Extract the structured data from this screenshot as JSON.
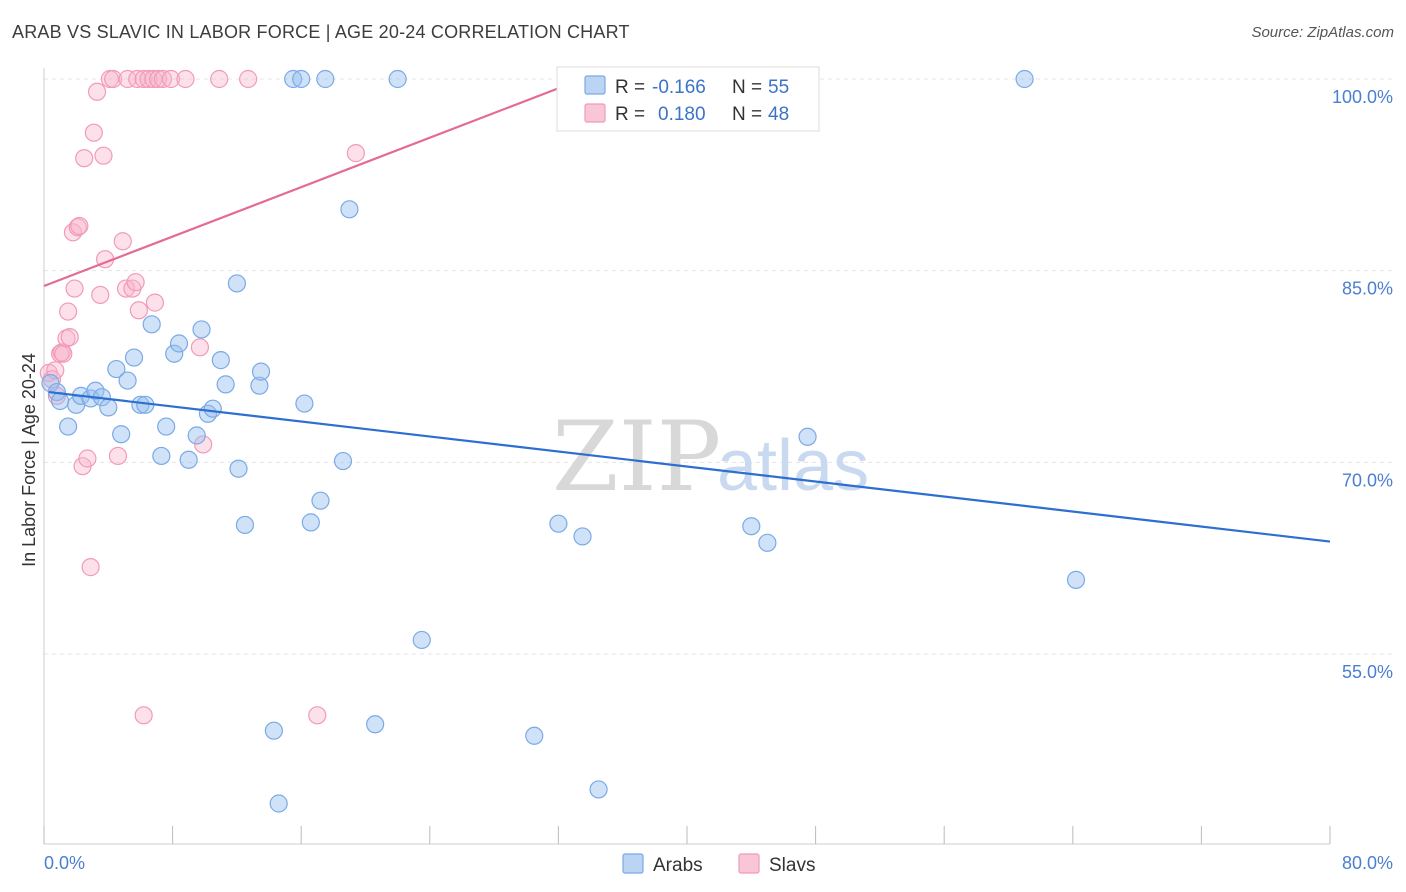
{
  "title": "ARAB VS SLAVIC IN LABOR FORCE | AGE 20-24 CORRELATION CHART",
  "source": "Source: ZipAtlas.com",
  "watermark": {
    "zip": "ZIP",
    "atlas": "atlas"
  },
  "colors": {
    "arabs": "#7aaae6",
    "slavs": "#f29ab8",
    "arabs_line": "#2d6fd0",
    "slavs_line": "#e46b94",
    "tick": "#4a7fd0"
  },
  "legend": {
    "r_label": "R =",
    "n_label": "N =",
    "arabs": {
      "r": "-0.166",
      "n": "55"
    },
    "slavs": {
      "r": "0.180",
      "n": "48"
    }
  },
  "chart_data": {
    "type": "scatter",
    "ylabel": "In Labor Force | Age 20-24",
    "xlim": [
      0,
      80
    ],
    "ylim": [
      42,
      102
    ],
    "x_tick_labels": [
      "0.0%",
      "80.0%"
    ],
    "x_ticks": [
      0,
      8,
      16,
      24,
      32,
      40,
      48,
      56,
      64,
      72,
      80
    ],
    "y_ticks": [
      {
        "value": 100,
        "label": "100.0%"
      },
      {
        "value": 85,
        "label": "85.0%"
      },
      {
        "value": 70,
        "label": "70.0%"
      },
      {
        "value": 55,
        "label": "55.0%"
      }
    ],
    "series": [
      {
        "name": "Arabs",
        "trend": [
          [
            0.3,
            75.5
          ],
          [
            80,
            63.8
          ]
        ],
        "points": [
          [
            0.4,
            76.2
          ],
          [
            0.8,
            75.5
          ],
          [
            1.0,
            74.8
          ],
          [
            1.5,
            72.8
          ],
          [
            2.0,
            74.5
          ],
          [
            2.3,
            75.2
          ],
          [
            2.9,
            75.0
          ],
          [
            3.2,
            75.6
          ],
          [
            3.6,
            75.1
          ],
          [
            4.0,
            74.3
          ],
          [
            4.5,
            77.3
          ],
          [
            4.8,
            72.2
          ],
          [
            5.2,
            76.4
          ],
          [
            5.6,
            78.2
          ],
          [
            6.0,
            74.5
          ],
          [
            6.3,
            74.5
          ],
          [
            6.7,
            80.8
          ],
          [
            7.3,
            70.5
          ],
          [
            7.6,
            72.8
          ],
          [
            8.1,
            78.5
          ],
          [
            8.4,
            79.3
          ],
          [
            9.0,
            70.2
          ],
          [
            9.5,
            72.1
          ],
          [
            9.8,
            80.4
          ],
          [
            10.2,
            73.8
          ],
          [
            10.5,
            74.2
          ],
          [
            11.0,
            78.0
          ],
          [
            11.3,
            76.1
          ],
          [
            12.0,
            84.0
          ],
          [
            12.1,
            69.5
          ],
          [
            12.5,
            65.1
          ],
          [
            13.4,
            76.0
          ],
          [
            13.5,
            77.1
          ],
          [
            14.3,
            49.0
          ],
          [
            14.6,
            43.3
          ],
          [
            15.5,
            100.0
          ],
          [
            16.0,
            100.0
          ],
          [
            16.2,
            74.6
          ],
          [
            16.6,
            65.3
          ],
          [
            17.2,
            67.0
          ],
          [
            17.5,
            100.0
          ],
          [
            18.6,
            70.1
          ],
          [
            19.0,
            89.8
          ],
          [
            20.6,
            49.5
          ],
          [
            22.0,
            100.0
          ],
          [
            23.5,
            56.1
          ],
          [
            30.5,
            48.6
          ],
          [
            32.0,
            65.2
          ],
          [
            33.5,
            64.2
          ],
          [
            34.5,
            44.4
          ],
          [
            44.0,
            65.0
          ],
          [
            45.0,
            63.7
          ],
          [
            47.5,
            72.0
          ],
          [
            61.0,
            100.0
          ],
          [
            64.2,
            60.8
          ]
        ]
      },
      {
        "name": "Slavs",
        "trend": [
          [
            0,
            83.8
          ],
          [
            33.5,
            100.0
          ]
        ],
        "points": [
          [
            0.3,
            77.0
          ],
          [
            0.5,
            76.5
          ],
          [
            0.7,
            77.2
          ],
          [
            0.8,
            75.2
          ],
          [
            1.0,
            78.5
          ],
          [
            1.1,
            78.6
          ],
          [
            1.2,
            78.5
          ],
          [
            1.4,
            79.7
          ],
          [
            1.5,
            81.8
          ],
          [
            1.6,
            79.8
          ],
          [
            1.8,
            88.0
          ],
          [
            1.9,
            83.6
          ],
          [
            2.1,
            88.4
          ],
          [
            2.2,
            88.5
          ],
          [
            2.4,
            69.7
          ],
          [
            2.5,
            93.8
          ],
          [
            2.7,
            70.3
          ],
          [
            2.9,
            61.8
          ],
          [
            3.1,
            95.8
          ],
          [
            3.3,
            99.0
          ],
          [
            3.5,
            83.1
          ],
          [
            3.7,
            94.0
          ],
          [
            3.8,
            85.9
          ],
          [
            4.1,
            100.0
          ],
          [
            4.3,
            100.0
          ],
          [
            4.6,
            70.5
          ],
          [
            4.9,
            87.3
          ],
          [
            5.1,
            83.6
          ],
          [
            5.2,
            100.0
          ],
          [
            5.5,
            83.6
          ],
          [
            5.7,
            84.1
          ],
          [
            5.8,
            100.0
          ],
          [
            5.9,
            81.9
          ],
          [
            6.2,
            100.0
          ],
          [
            6.5,
            100.0
          ],
          [
            6.8,
            100.0
          ],
          [
            6.9,
            82.5
          ],
          [
            7.1,
            100.0
          ],
          [
            7.4,
            100.0
          ],
          [
            7.9,
            100.0
          ],
          [
            6.2,
            50.2
          ],
          [
            8.8,
            100.0
          ],
          [
            9.7,
            79.0
          ],
          [
            9.9,
            71.4
          ],
          [
            10.9,
            100.0
          ],
          [
            12.7,
            100.0
          ],
          [
            17.0,
            50.2
          ],
          [
            19.4,
            94.2
          ]
        ]
      }
    ]
  },
  "bottom_legend": {
    "arabs": "Arabs",
    "slavs": "Slavs"
  }
}
